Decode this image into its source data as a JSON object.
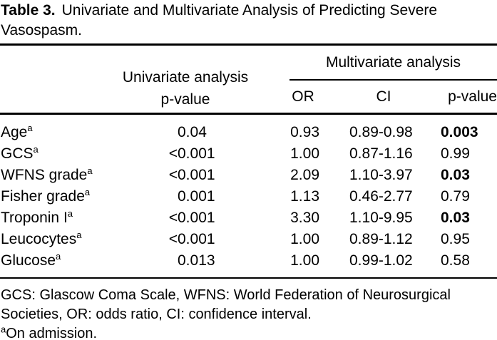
{
  "title": {
    "label": "Table 3.",
    "line1": "Univariate and Multivariate Analysis of Predicting Severe",
    "line2": "Vasospasm."
  },
  "header": {
    "univariate_line1": "Univariate analysis",
    "univariate_line2": "p-value",
    "multivariate": "Multivariate analysis",
    "or": "OR",
    "ci": "CI",
    "p": "p-value"
  },
  "rows": [
    {
      "label": "Age",
      "sup": "a",
      "uni_prefix": "",
      "uni_value": "0.04",
      "or": "0.93",
      "ci": "0.89-0.98",
      "p": "0.003",
      "p_bold": true
    },
    {
      "label": "GCS",
      "sup": "a",
      "uni_prefix": "<",
      "uni_value": "0.001",
      "or": "1.00",
      "ci": "0.87-1.16",
      "p": "0.99",
      "p_bold": false
    },
    {
      "label": "WFNS grade",
      "sup": "a",
      "uni_prefix": "<",
      "uni_value": "0.001",
      "or": "2.09",
      "ci": "1.10-3.97",
      "p": "0.03",
      "p_bold": true
    },
    {
      "label": "Fisher grade",
      "sup": "a",
      "uni_prefix": "",
      "uni_value": "0.001",
      "or": "1.13",
      "ci": "0.46-2.77",
      "p": "0.79",
      "p_bold": false
    },
    {
      "label": "Troponin I",
      "sup": "a",
      "uni_prefix": "<",
      "uni_value": "0.001",
      "or": "3.30",
      "ci": "1.10-9.95",
      "p": "0.03",
      "p_bold": true
    },
    {
      "label": "Leucocytes",
      "sup": "a",
      "uni_prefix": "<",
      "uni_value": "0.001",
      "or": "1.00",
      "ci": "0.89-1.12",
      "p": "0.95",
      "p_bold": false
    },
    {
      "label": "Glucose",
      "sup": "a",
      "uni_prefix": "",
      "uni_value": "0.013",
      "or": "1.00",
      "ci": "0.99-1.02",
      "p": "0.58",
      "p_bold": false
    }
  ],
  "footnotes": {
    "line1": "GCS: Glascow Coma Scale, WFNS: World Federation of Neurosurgical",
    "line2": "Societies, OR: odds ratio, CI: confidence interval.",
    "sup": "a",
    "line3": "On admission."
  },
  "colors": {
    "text": "#000000",
    "background": "#ffffff",
    "rule": "#000000"
  }
}
